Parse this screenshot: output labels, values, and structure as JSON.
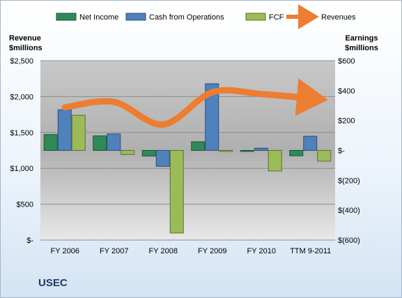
{
  "chart_data": {
    "type": "bar",
    "categories": [
      "FY 2006",
      "FY 2007",
      "FY 2008",
      "FY 2009",
      "FY 2010",
      "TTM 9-2011"
    ],
    "series": [
      {
        "name": "Net Income",
        "axis": "right",
        "values": [
          106,
          97,
          -38,
          58,
          -7,
          -36
        ],
        "color": "#2e8b57"
      },
      {
        "name": "Cash from Operations",
        "axis": "right",
        "values": [
          272,
          110,
          -107,
          446,
          15,
          95
        ],
        "color": "#4f81bd"
      },
      {
        "name": "FCF",
        "axis": "right",
        "values": [
          235,
          -28,
          -553,
          0,
          -138,
          -72
        ],
        "color": "#9bbb59"
      },
      {
        "name": "Revenues",
        "axis": "left",
        "type": "line",
        "values": [
          1850,
          1925,
          1610,
          2060,
          2035,
          1975
        ],
        "color": "#ed7d31"
      }
    ],
    "left_axis": {
      "title": [
        "Revenue",
        "$millions"
      ],
      "range": [
        0,
        2500
      ],
      "ticks": [
        {
          "value": 2500,
          "label": "$2,500"
        },
        {
          "value": 2000,
          "label": "$2,000"
        },
        {
          "value": 1500,
          "label": "$1,500"
        },
        {
          "value": 1000,
          "label": "$1,000"
        },
        {
          "value": 500,
          "label": "$500"
        },
        {
          "value": 0,
          "label": "$-"
        }
      ]
    },
    "right_axis": {
      "title": [
        "Earnings",
        "$millions"
      ],
      "range": [
        -600,
        600
      ],
      "ticks": [
        {
          "value": 600,
          "label": "$600"
        },
        {
          "value": 400,
          "label": "$400"
        },
        {
          "value": 200,
          "label": "$200"
        },
        {
          "value": 0,
          "label": "$-"
        },
        {
          "value": -200,
          "label": "$(200)"
        },
        {
          "value": -400,
          "label": "$(400)"
        },
        {
          "value": -600,
          "label": "$(600)"
        }
      ]
    },
    "grid": true,
    "legend_position": "top"
  },
  "footer": {
    "ticker": "USEC"
  }
}
